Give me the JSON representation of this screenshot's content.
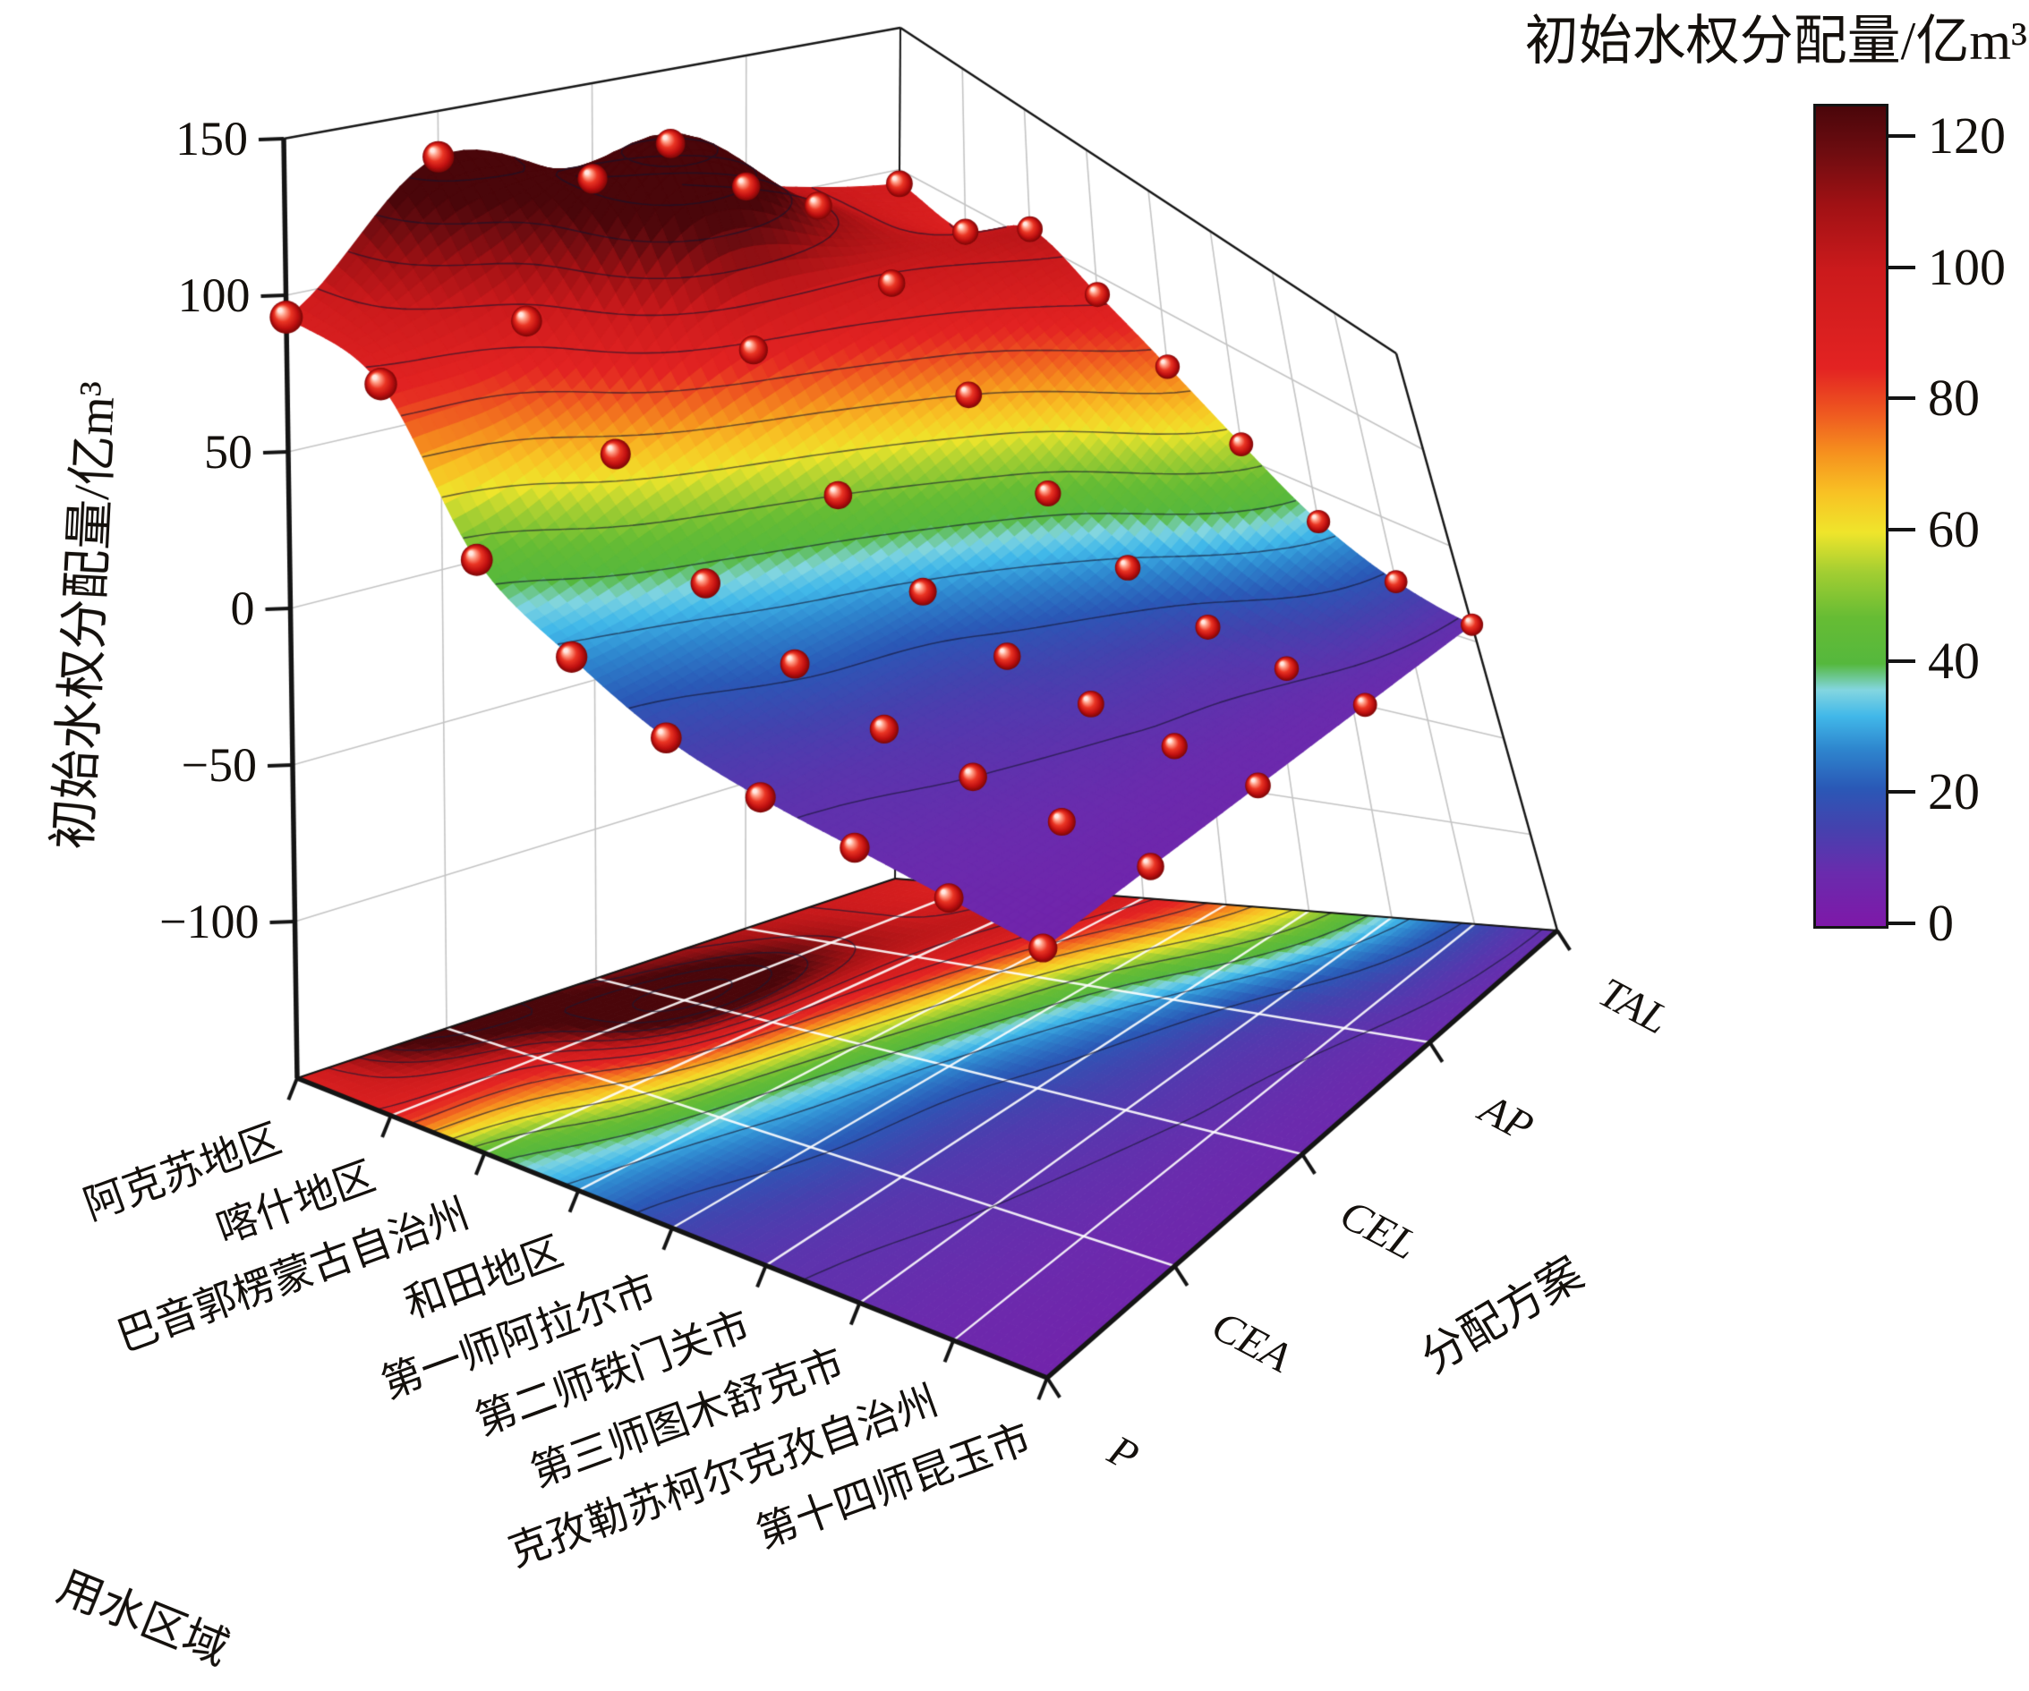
{
  "chart_data": {
    "type": "surface3d-with-contour-projection",
    "colorbar": {
      "title": "初始水权分配量/亿m³",
      "ticks": [
        120,
        100,
        80,
        60,
        40,
        20,
        0
      ],
      "range_max": 125
    },
    "axes": {
      "z": {
        "title": "初始水权分配量/亿m³",
        "ticks": [
          150,
          100,
          50,
          0,
          -50,
          -100
        ],
        "lim": [
          -150,
          150
        ]
      },
      "x": {
        "title": "用水区域",
        "categories": [
          "阿克苏地区",
          "喀什地区",
          "巴音郭楞蒙古自治州",
          "和田地区",
          "第一师阿拉尔市",
          "第二师铁门关市",
          "第三师图木舒克市",
          "克孜勒苏柯尔克孜自治州",
          "第十四师昆玉市"
        ]
      },
      "y": {
        "title": "分配方案",
        "categories": [
          "P",
          "CEA",
          "CEL",
          "AP",
          "TAL"
        ]
      }
    },
    "series": [
      {
        "name": "P",
        "values": [
          93,
          87,
          45,
          28,
          16,
          11,
          9,
          7,
          5
        ]
      },
      {
        "name": "CEA",
        "values": [
          135,
          96,
          66,
          36,
          22,
          13,
          10,
          8,
          6
        ]
      },
      {
        "name": "CEL",
        "values": [
          118,
          145,
          88,
          50,
          28,
          17,
          12,
          9,
          7
        ]
      },
      {
        "name": "AP",
        "values": [
          105,
          112,
          98,
          70,
          45,
          28,
          16,
          11,
          8
        ]
      },
      {
        "name": "TAL",
        "values": [
          95,
          90,
          104,
          92,
          76,
          56,
          34,
          18,
          9
        ]
      }
    ],
    "contour_step": 10,
    "point_color": "#cc1111",
    "grid": true,
    "colormap": [
      [
        0,
        "#7E18A8"
      ],
      [
        8,
        "#6A2BAD"
      ],
      [
        15,
        "#4442AE"
      ],
      [
        21,
        "#2A58B6"
      ],
      [
        27,
        "#2E86CE"
      ],
      [
        32,
        "#41B8E9"
      ],
      [
        36,
        "#83D6E0"
      ],
      [
        40,
        "#55B83D"
      ],
      [
        47,
        "#66BC34"
      ],
      [
        54,
        "#A3CE32"
      ],
      [
        60,
        "#EFE52B"
      ],
      [
        66,
        "#F8C224"
      ],
      [
        72,
        "#F6921E"
      ],
      [
        78,
        "#EF5A20"
      ],
      [
        85,
        "#E32322"
      ],
      [
        100,
        "#CB1A1C"
      ],
      [
        110,
        "#A01114"
      ],
      [
        118,
        "#6E0C10"
      ],
      [
        125,
        "#4A060A"
      ]
    ]
  }
}
